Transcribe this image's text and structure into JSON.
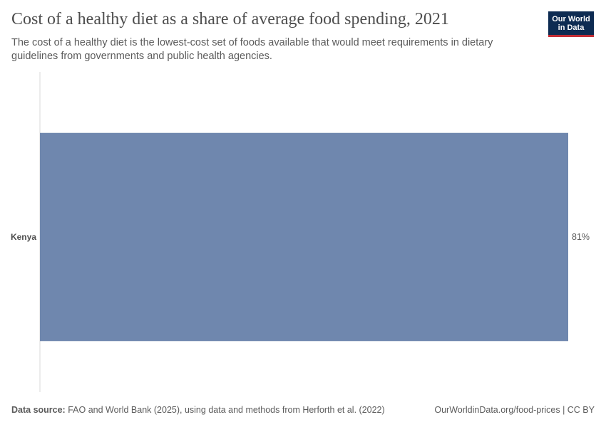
{
  "header": {
    "title": "Cost of a healthy diet as a share of average food spending, 2021",
    "subtitle": "The cost of a healthy diet is the lowest-cost set of foods available that would meet requirements in dietary guidelines from governments and public health agencies."
  },
  "logo": {
    "line1": "Our World",
    "line2": "in Data"
  },
  "footer": {
    "source_label": "Data source:",
    "source_text": "FAO and World Bank (2025), using data and methods from Herforth et al. (2022)",
    "link_text": "OurWorldinData.org/food-prices | CC BY"
  },
  "colors": {
    "bar": "#6f87ae",
    "axis": "#d9d9d9",
    "text": "#4d4d4d"
  },
  "chart_data": {
    "type": "bar",
    "orientation": "horizontal",
    "categories": [
      "Kenya"
    ],
    "values": [
      81
    ],
    "value_labels": [
      "81%"
    ],
    "unit": "%",
    "xlim": [
      0,
      81
    ]
  }
}
